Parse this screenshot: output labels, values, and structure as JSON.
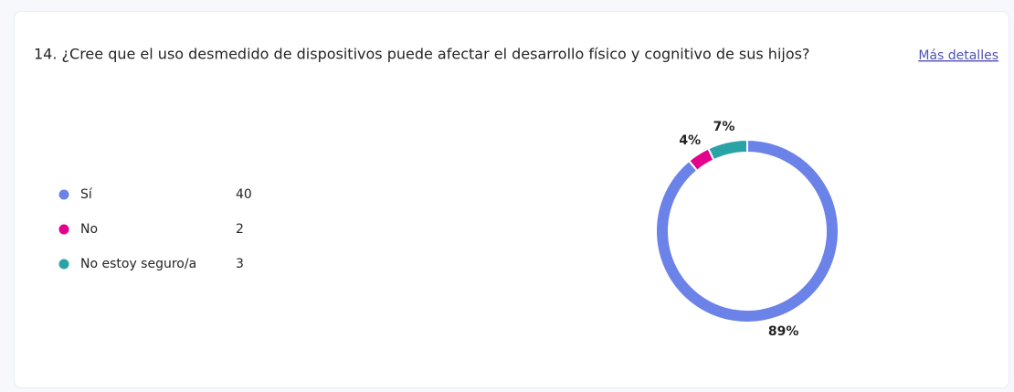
{
  "chart_data": {
    "type": "pie",
    "donut": true,
    "title": "14. ¿Cree que el uso desmedido de dispositivos puede afectar el desarrollo físico y cognitivo de sus hijos?",
    "link": "Más detalles",
    "categories": [
      "Sí",
      "No",
      "No estoy seguro/a"
    ],
    "counts": [
      40,
      2,
      3
    ],
    "values": [
      89,
      4,
      7
    ],
    "value_labels": [
      "89%",
      "4%",
      "7%"
    ],
    "colors": [
      "#6b82e8",
      "#e3008c",
      "#2aa3a6"
    ]
  }
}
